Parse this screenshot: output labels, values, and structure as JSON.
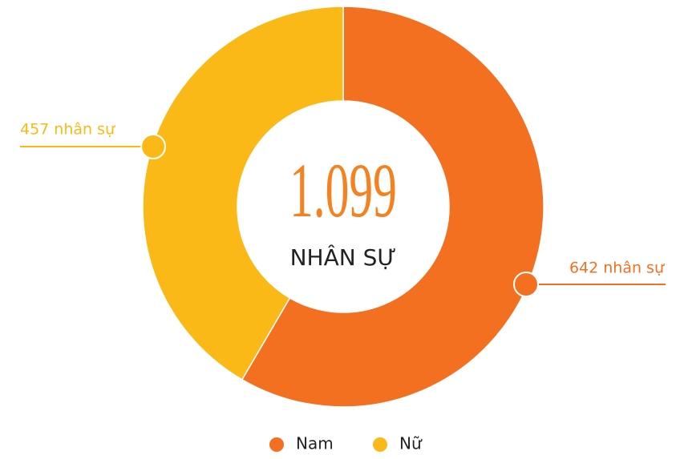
{
  "chart_data": {
    "type": "pie",
    "donut": true,
    "center_title": "1.099",
    "center_subtitle": "NHÂN SỰ",
    "categories": [
      "Nam",
      "Nữ"
    ],
    "values": [
      642,
      457
    ],
    "value_labels": [
      "642 nhân sự",
      "457 nhân sự"
    ],
    "colors": [
      "#f37021",
      "#fbb917"
    ],
    "legend": "bottom"
  }
}
